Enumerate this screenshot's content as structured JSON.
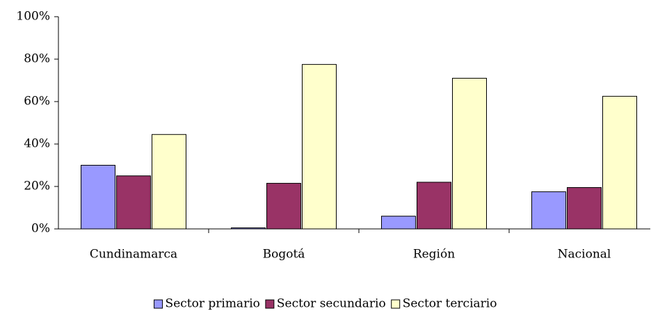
{
  "chart_data": {
    "type": "bar",
    "categories": [
      "Cundinamarca",
      "Bogotá",
      "Región",
      "Nacional"
    ],
    "series": [
      {
        "name": "Sector primario",
        "color": "#9999ff",
        "values": [
          30,
          0.5,
          6,
          17.5
        ]
      },
      {
        "name": "Sector secundario",
        "color": "#993366",
        "values": [
          25,
          21.5,
          22,
          19.5
        ]
      },
      {
        "name": "Sector terciario",
        "color": "#ffffcc",
        "values": [
          44.5,
          77.5,
          71,
          62.5
        ]
      }
    ],
    "ylim": [
      0,
      100
    ],
    "yticks": [
      {
        "value": 0,
        "label": "0%"
      },
      {
        "value": 20,
        "label": "20%"
      },
      {
        "value": 40,
        "label": "40%"
      },
      {
        "value": 60,
        "label": "60%"
      },
      {
        "value": 80,
        "label": "80%"
      },
      {
        "value": 100,
        "label": "100%"
      }
    ],
    "legend": "bottom"
  }
}
